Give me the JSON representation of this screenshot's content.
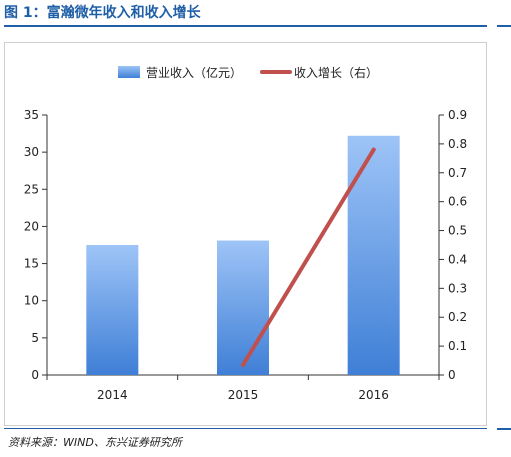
{
  "figure": {
    "title": "图 1：富瀚微年收入和收入增长",
    "source": "资料来源：WIND、东兴证券研究所"
  },
  "colors": {
    "accent": "#1f5fa8",
    "bar_top": "#9ec4f7",
    "bar_bottom": "#3f7fd6",
    "line": "#c0504d"
  },
  "chart_data": {
    "type": "bar",
    "categories": [
      "2014",
      "2015",
      "2016"
    ],
    "series": [
      {
        "name": "营业收入（亿元）",
        "type": "bar",
        "axis": "left",
        "values": [
          17.5,
          18.1,
          32.2
        ]
      },
      {
        "name": "收入增长（右）",
        "type": "line",
        "axis": "right",
        "values": [
          null,
          0.035,
          0.78
        ]
      }
    ],
    "ylim": [
      0,
      35
    ],
    "yticks": [
      "0",
      "5",
      "10",
      "15",
      "20",
      "25",
      "30",
      "35"
    ],
    "y2lim": [
      0,
      0.9
    ],
    "y2ticks": [
      "0",
      "0.1",
      "0.2",
      "0.3",
      "0.4",
      "0.5",
      "0.6",
      "0.7",
      "0.8",
      "0.9"
    ],
    "legend": "top-center",
    "grid": false
  }
}
